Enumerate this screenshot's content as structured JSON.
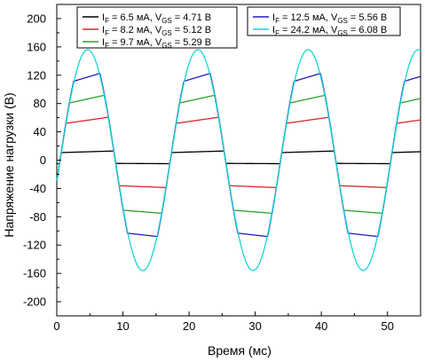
{
  "chart_data": {
    "type": "line",
    "xlabel": "Время (мс)",
    "ylabel": "Напряжение нагрузки (В)",
    "xlim": [
      0,
      55
    ],
    "ylim": [
      -220,
      220
    ],
    "x_ticks": [
      0,
      10,
      20,
      30,
      40,
      50
    ],
    "y_ticks": [
      -200,
      -160,
      -120,
      -80,
      -40,
      0,
      40,
      80,
      120,
      160,
      200
    ],
    "period_ms": 16.67,
    "phase_ms": 0.5,
    "grid": false,
    "legend_position": "top, two boxes",
    "series": [
      {
        "name_parts": [
          "I",
          "F",
          " = 6.5 мА, V",
          "GS",
          " = 4.71 В"
        ],
        "color": "#000000",
        "pos_peak": 13,
        "neg_peak": -5,
        "shape": "clipped"
      },
      {
        "name_parts": [
          "I",
          "F",
          " = 8.2 мА, V",
          "GS",
          " = 5.12 В"
        ],
        "color": "#d62728",
        "pos_peak": 62,
        "neg_peak": -39,
        "shape": "clipped"
      },
      {
        "name_parts": [
          "I",
          "F",
          " = 9.7 мА, V",
          "GS",
          " = 5.29 В"
        ],
        "color": "#2ca02c",
        "pos_peak": 95,
        "neg_peak": -76,
        "shape": "clipped"
      },
      {
        "name_parts": [
          "I",
          "F",
          " = 12.5 мА, V",
          "GS",
          " = 5.56 В"
        ],
        "color": "#1f1fbf",
        "pos_peak": 129,
        "neg_peak": -110,
        "shape": "clipped"
      },
      {
        "name_parts": [
          "I",
          "F",
          " = 24.2 мА, V",
          "GS",
          " = 6.08 В"
        ],
        "color": "#17d4d4",
        "pos_peak": 156,
        "neg_peak": -158,
        "shape": "sine"
      }
    ]
  }
}
